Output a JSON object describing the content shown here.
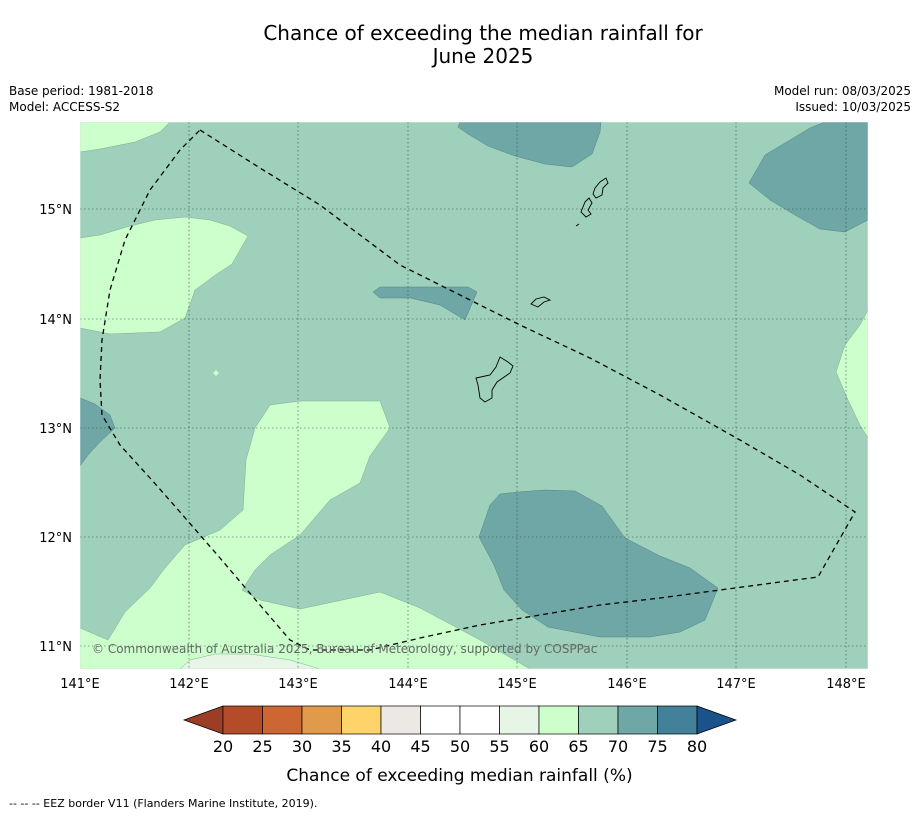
{
  "title_line1": "Chance of exceeding the median rainfall for",
  "title_line2": "June 2025",
  "base_period": "Base period: 1981-2018",
  "model": "Model: ACCESS-S2",
  "model_run": "Model run: 08/03/2025",
  "issued": "Issued: 10/03/2025",
  "copyright": "© Commonwealth of Australia 2025, Bureau of Meteorology, supported by COSPPac",
  "colorbar_label": "Chance of exceeding median rainfall (%)",
  "footnote": "--  --  -- EEZ border V11 (Flanders Marine Institute, 2019).",
  "lon_ticks": [
    "141°E",
    "142°E",
    "143°E",
    "144°E",
    "145°E",
    "146°E",
    "147°E",
    "148°E"
  ],
  "lat_ticks": [
    "15°N",
    "14°N",
    "13°N",
    "12°N",
    "11°N"
  ],
  "colorbar_ticks": [
    "20",
    "25",
    "30",
    "35",
    "40",
    "45",
    "50",
    "55",
    "60",
    "65",
    "70",
    "75",
    "80"
  ],
  "colorbar_colors": {
    "below_20": "#9c3d26",
    "20-25": "#b44c2a",
    "25-30": "#cc6633",
    "30-35": "#e09a4a",
    "35-40": "#fdd36a",
    "40-45": "#ece8e4",
    "45-50": "#ffffff",
    "50-55": "#ffffff",
    "55-60": "#e6f5e6",
    "60-65": "#ccffcc",
    "65-70": "#9ed0bb",
    "70-75": "#6fa6a6",
    "75-80": "#43809a",
    "above_80": "#1a528a"
  },
  "map_regions": {
    "background_class": "65-70",
    "regions_60_65": 6,
    "regions_70_75": 5,
    "regions_55_60": 1
  },
  "map_extent": {
    "lon": [
      141,
      148.2
    ],
    "lat": [
      10.8,
      15.8
    ]
  }
}
